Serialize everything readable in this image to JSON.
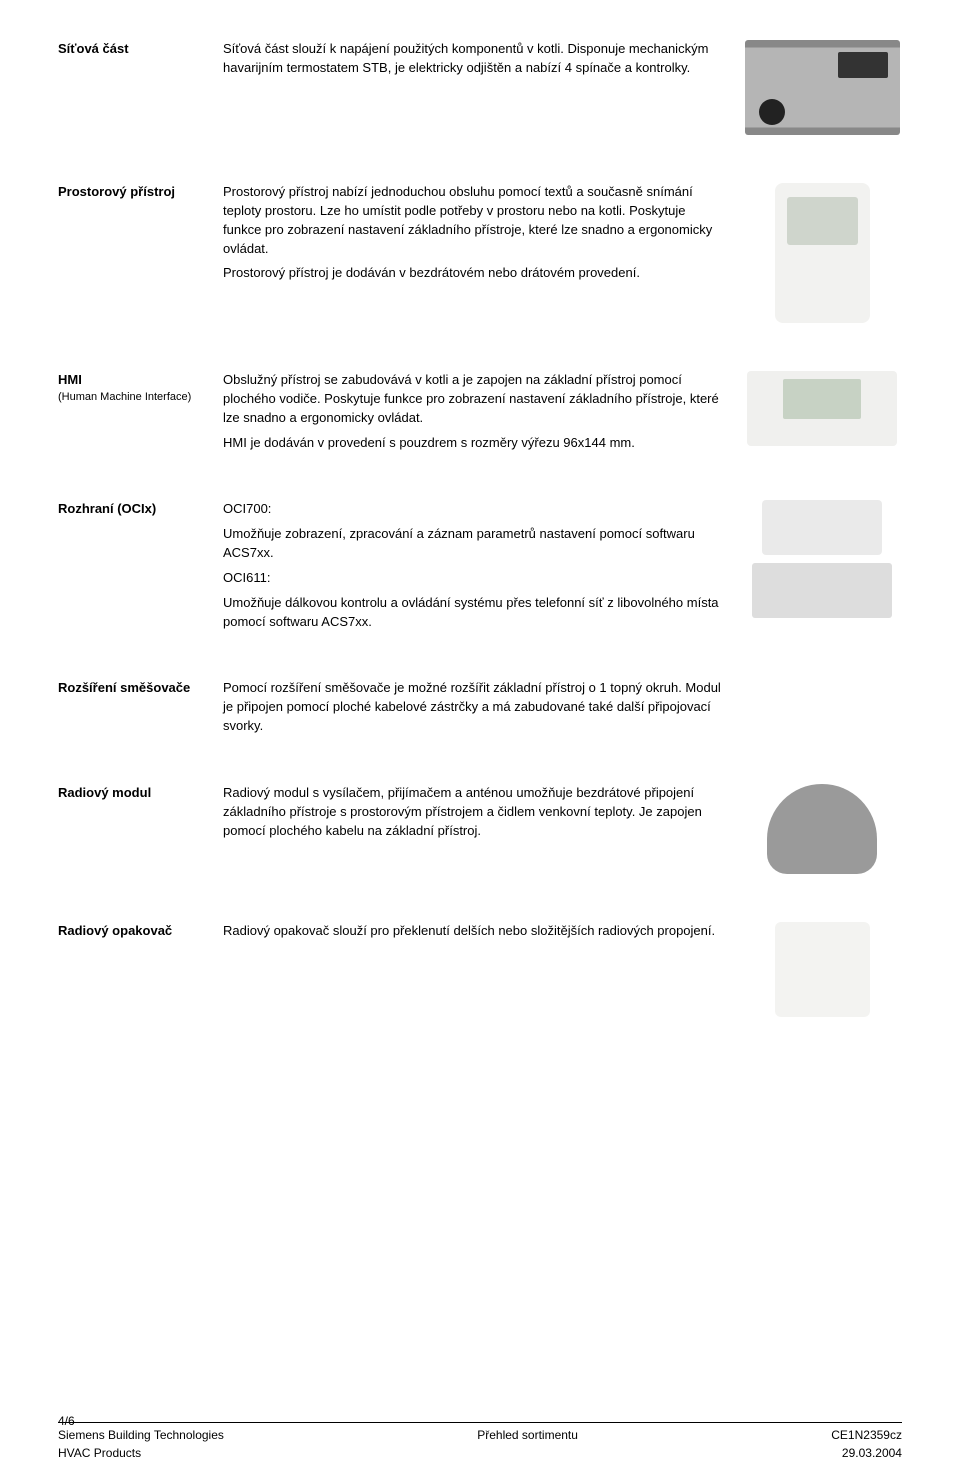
{
  "sections": {
    "sitova": {
      "label": "Síťová část",
      "text": "Síťová část slouží k napájení použitých komponentů v kotli. Disponuje mechanickým havarijním termostatem STB, je elektricky odjištěn a nabízí 4 spínače a kontrolky."
    },
    "prostorovy": {
      "label": "Prostorový přístroj",
      "text": "Prostorový přístroj nabízí jednoduchou obsluhu pomocí textů a současně snímání teploty prostoru. Lze ho umístit podle potřeby v prostoru nebo na kotli. Poskytuje funkce pro zobrazení nastavení základního přístroje, které lze snadno a ergonomicky ovládat.",
      "text2": "Prostorový přístroj je dodáván v bezdrátovém nebo drátovém provedení."
    },
    "hmi": {
      "label": "HMI",
      "sublabel": "(Human Machine Interface)",
      "text": "Obslužný přístroj se zabudovává v kotli a je zapojen na základní přístroj pomocí plochého vodiče. Poskytuje funkce pro  zobrazení nastavení základního přístroje, které lze snadno a ergonomicky ovládat.",
      "text2": "HMI je dodáván v provedení s pouzdrem s rozměry výřezu 96x144 mm."
    },
    "rozhrani": {
      "label": "Rozhraní (OCIx)",
      "text1a": "OCI700:",
      "text1b": "Umožňuje zobrazení, zpracování a záznam parametrů nastavení pomocí softwaru ACS7xx.",
      "text2a": "OCI611:",
      "text2b": "Umožňuje dálkovou kontrolu a ovládání systému přes telefonní síť z libovolného místa pomocí softwaru ACS7xx."
    },
    "rozsireni": {
      "label": "Rozšíření směšovače",
      "text": "Pomocí rozšíření směšovače je možné rozšířit základní přístroj o 1 topný okruh. Modul je připojen pomocí ploché kabelové zástrčky a má zabudované také další připojovací svorky."
    },
    "radiovy_modul": {
      "label": "Radiový modul",
      "text": "Radiový modul s vysílačem, přijímačem a anténou umožňuje bezdrátové připojení základního přístroje s prostorovým přístrojem a čidlem venkovní teploty. Je zapojen pomocí plochého kabelu na základní přístroj."
    },
    "radiovy_opakovac": {
      "label": "Radiový opakovač",
      "text": "Radiový opakovač slouží pro překlenutí delších nebo složitějších radiových propojení."
    }
  },
  "footer": {
    "page": "4/6",
    "left1": "Siemens Building Technologies",
    "left2": "HVAC Products",
    "center": "Přehled sortimentu",
    "right1": "CE1N2359cz",
    "right2": "29.03.2004"
  }
}
